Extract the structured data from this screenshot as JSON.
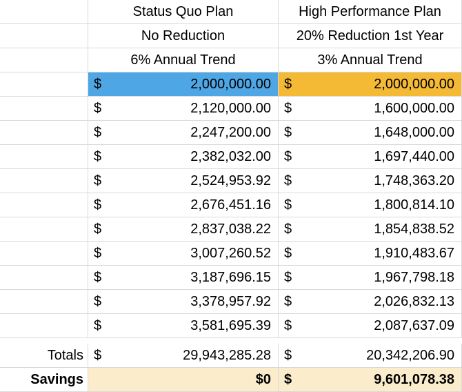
{
  "header": {
    "row1": {
      "status_quo": "Status Quo Plan",
      "high_perf": "High Performance Plan"
    },
    "row2": {
      "status_quo": "No Reduction",
      "high_perf": "20% Reduction 1st Year"
    },
    "row3": {
      "status_quo": "6% Annual Trend",
      "high_perf": "3% Annual Trend"
    }
  },
  "currency_symbol": "$",
  "rows": [
    {
      "status_quo": "2,000,000.00",
      "high_perf": "2,000,000.00"
    },
    {
      "status_quo": "2,120,000.00",
      "high_perf": "1,600,000.00"
    },
    {
      "status_quo": "2,247,200.00",
      "high_perf": "1,648,000.00"
    },
    {
      "status_quo": "2,382,032.00",
      "high_perf": "1,697,440.00"
    },
    {
      "status_quo": "2,524,953.92",
      "high_perf": "1,748,363.20"
    },
    {
      "status_quo": "2,676,451.16",
      "high_perf": "1,800,814.10"
    },
    {
      "status_quo": "2,837,038.22",
      "high_perf": "1,854,838.52"
    },
    {
      "status_quo": "3,007,260.52",
      "high_perf": "1,910,483.67"
    },
    {
      "status_quo": "3,187,696.15",
      "high_perf": "1,967,798.18"
    },
    {
      "status_quo": "3,378,957.92",
      "high_perf": "2,026,832.13"
    },
    {
      "status_quo": "3,581,695.39",
      "high_perf": "2,087,637.09"
    }
  ],
  "totals": {
    "label": "Totals",
    "status_quo": "29,943,285.28",
    "high_perf": "20,342,206.90"
  },
  "savings": {
    "label": "Savings",
    "status_quo": "$0",
    "high_perf": "9,601,078.38"
  },
  "colors": {
    "first_row_status_quo": "#4ea6e4",
    "first_row_high_perf": "#f4b935",
    "savings_row": "#fbedcb",
    "grid": "#d9d9d9"
  }
}
